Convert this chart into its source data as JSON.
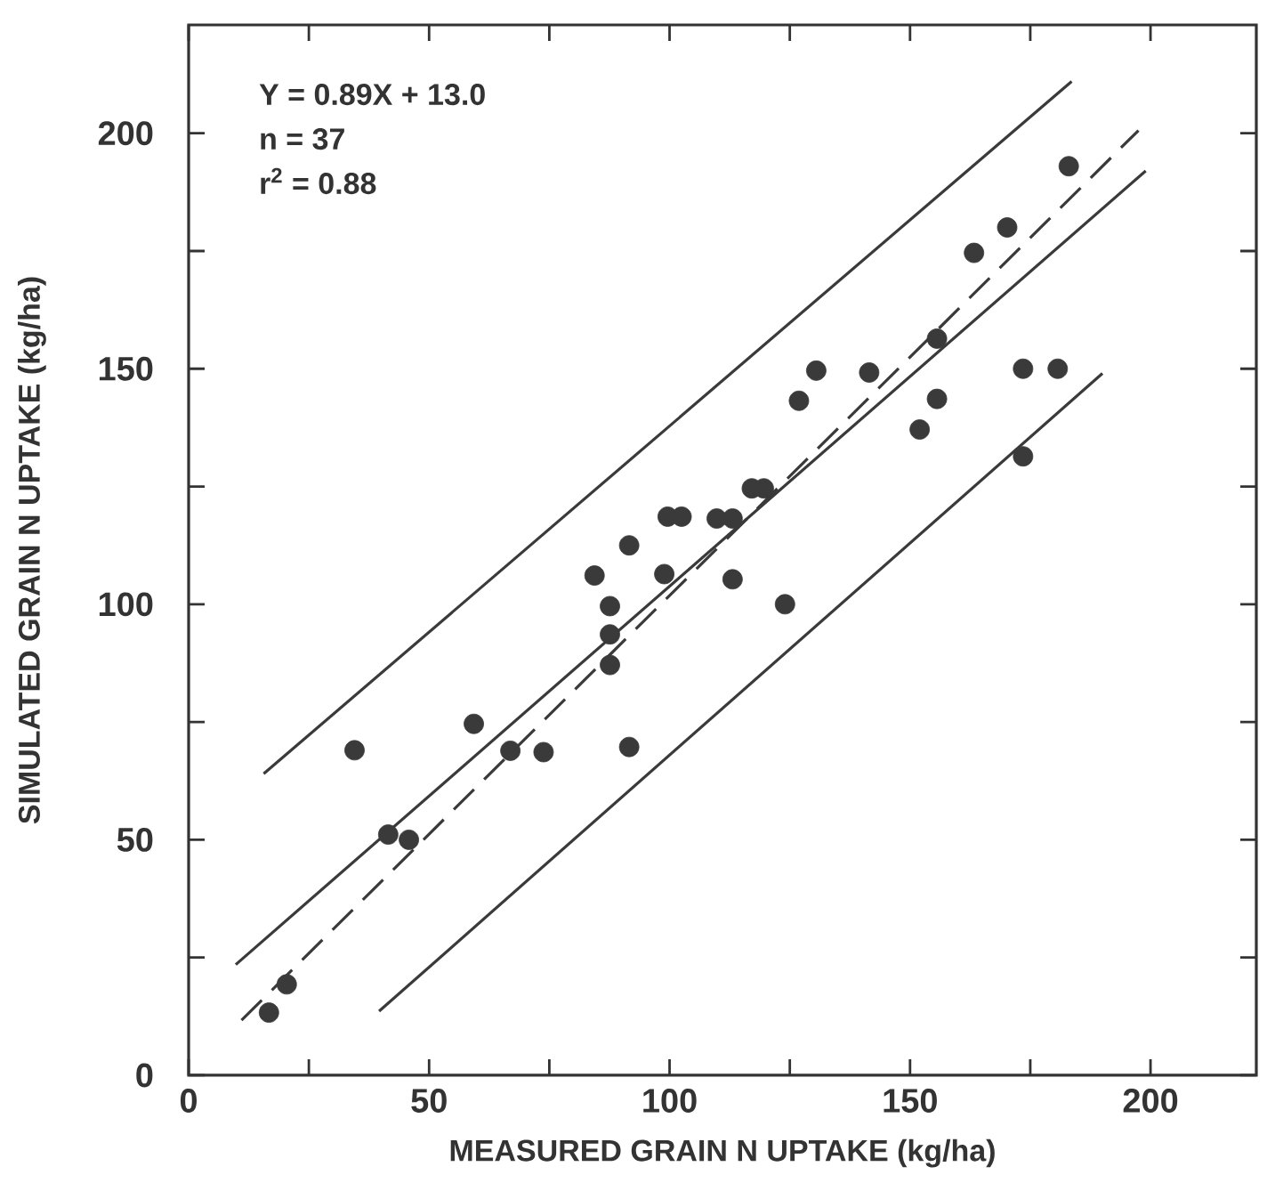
{
  "chart_data": {
    "type": "scatter",
    "xlabel": "MEASURED GRAIN N UPTAKE (kg/ha)",
    "ylabel": "SIMULATED GRAIN N UPTAKE (kg/ha)",
    "annotations": [
      "Y = 0.89X + 13.0",
      "n = 37",
      "r$^{2}$ = 0.88"
    ],
    "xlim": [
      0,
      222
    ],
    "ylim": [
      0,
      223
    ],
    "xticks": [
      0,
      {
        "value": 25,
        "label": null
      },
      50,
      {
        "value": 75,
        "label": null
      },
      100,
      {
        "value": 125,
        "label": null
      },
      150,
      {
        "value": 175,
        "label": null
      },
      200
    ],
    "yticks": [
      0,
      {
        "value": 25,
        "label": null
      },
      50,
      {
        "value": 75,
        "label": null
      },
      100,
      {
        "value": 125,
        "label": null
      },
      150,
      {
        "value": 175,
        "label": null
      },
      200
    ],
    "grid": false,
    "series": [
      {
        "marker": "circle",
        "color": "#3a3a3a",
        "x": [
          16.7,
          20.4,
          34.5,
          41.5,
          45.8,
          59.3,
          66.9,
          73.8,
          84.4,
          87.6,
          87.6,
          87.6,
          91.6,
          91.6,
          98.9,
          99.6,
          102.5,
          113.1,
          109.8,
          113.1,
          117.1,
          119.6,
          124,
          126.9,
          130.5,
          141.5,
          152,
          155.6,
          155.6,
          173.5,
          180.7,
          173.5,
          183,
          163.3,
          170.2
        ],
        "values": [
          13.3,
          19.3,
          69,
          51.1,
          50,
          74.6,
          68.9,
          68.6,
          106.1,
          99.6,
          93.6,
          87.1,
          112.5,
          69.7,
          106.4,
          118.6,
          118.6,
          105.3,
          118.2,
          118.2,
          124.6,
          124.6,
          100,
          143.2,
          149.6,
          149.2,
          137.1,
          143.6,
          156.4,
          150,
          150,
          131.4,
          193,
          174.6,
          180
        ]
      },
      {
        "type": "line",
        "color": "#3a3a3a",
        "line_style": "dashed",
        "marker": "none",
        "x": [
          11,
          197.5
        ],
        "values": [
          11.7,
          200.6
        ]
      },
      {
        "type": "line",
        "color": "#3a3a3a",
        "line_style": "solid",
        "marker": "none",
        "x": [
          9.8,
          199
        ],
        "values": [
          23.5,
          192
        ]
      },
      {
        "type": "line",
        "color": "#3a3a3a",
        "line_style": "solid",
        "marker": "none",
        "x": [
          15.6,
          183.6
        ],
        "values": [
          64,
          211
        ]
      },
      {
        "type": "line",
        "color": "#3a3a3a",
        "line_style": "solid",
        "marker": "none",
        "x": [
          39.6,
          190
        ],
        "values": [
          13.6,
          149
        ]
      }
    ]
  }
}
